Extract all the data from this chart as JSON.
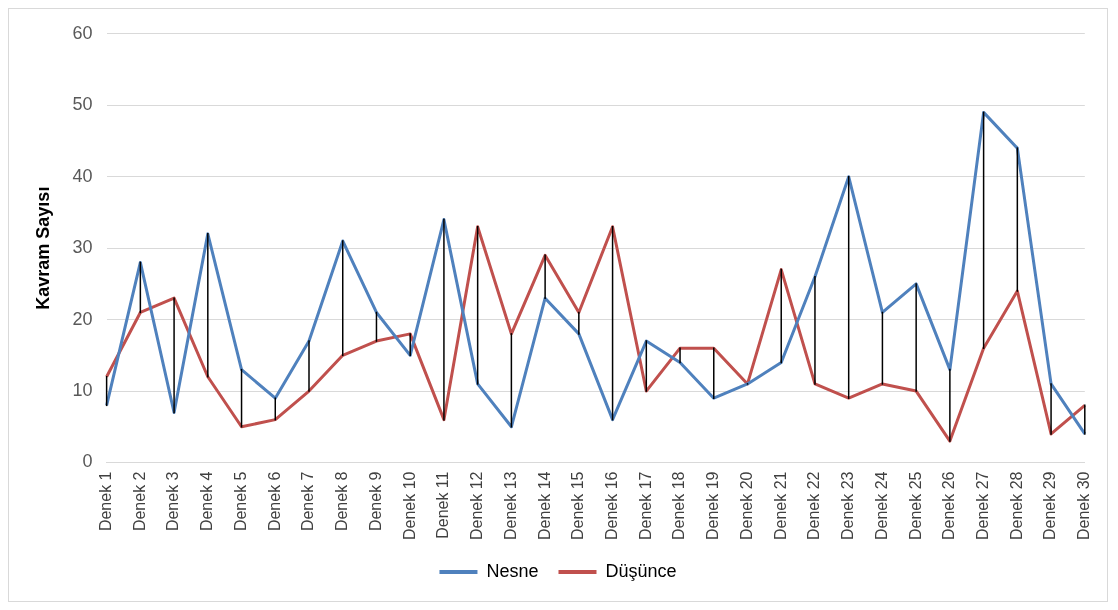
{
  "chart_data": {
    "type": "line",
    "ylabel": "Kavram Sayısı",
    "categories": [
      "Denek 1",
      "Denek 2",
      "Denek 3",
      "Denek 4",
      "Denek 5",
      "Denek 6",
      "Denek 7",
      "Denek 8",
      "Denek 9",
      "Denek 10",
      "Denek 11",
      "Denek 12",
      "Denek 13",
      "Denek 14",
      "Denek 15",
      "Denek 16",
      "Denek 17",
      "Denek 18",
      "Denek 19",
      "Denek 20",
      "Denek 21",
      "Denek 22",
      "Denek 23",
      "Denek 24",
      "Denek 25",
      "Denek 26",
      "Denek 27",
      "Denek 28",
      "Denek 29",
      "Denek 30"
    ],
    "series": [
      {
        "name": "Nesne",
        "color": "#4f81bd",
        "values": [
          8,
          28,
          7,
          32,
          13,
          9,
          17,
          31,
          21,
          15,
          34,
          11,
          5,
          23,
          18,
          6,
          17,
          14,
          9,
          11,
          14,
          26,
          40,
          21,
          25,
          13,
          49,
          44,
          11,
          4
        ],
        "errors": [
          [
            8,
            12
          ],
          [
            21,
            28
          ],
          [
            7,
            23
          ],
          [
            12,
            32
          ],
          [
            5,
            13
          ],
          [
            6,
            9
          ],
          [
            10,
            17
          ],
          [
            15,
            31
          ],
          [
            17,
            21
          ],
          [
            15,
            18
          ],
          [
            6,
            34
          ],
          [
            11,
            33
          ],
          [
            5,
            18
          ],
          [
            23,
            29
          ],
          [
            18,
            21
          ],
          [
            6,
            33
          ],
          [
            10,
            17
          ],
          [
            14,
            16
          ],
          [
            9,
            16
          ],
          [
            11,
            11
          ],
          [
            14,
            27
          ],
          [
            11,
            26
          ],
          [
            9,
            40
          ],
          [
            11,
            21
          ],
          [
            10,
            25
          ],
          [
            3,
            13
          ],
          [
            16,
            49
          ],
          [
            24,
            44
          ],
          [
            4,
            11
          ],
          [
            4,
            8
          ]
        ]
      },
      {
        "name": "Düşünce",
        "color": "#c0504d",
        "values": [
          12,
          21,
          23,
          12,
          5,
          6,
          10,
          15,
          17,
          18,
          6,
          33,
          18,
          29,
          21,
          33,
          10,
          16,
          16,
          11,
          27,
          11,
          9,
          11,
          10,
          3,
          16,
          24,
          4,
          8
        ]
      }
    ],
    "ylim": [
      0,
      60
    ],
    "yticks": [
      0,
      10,
      20,
      30,
      40,
      50,
      60
    ],
    "grid": "y",
    "legend": "bottom",
    "marker": "none",
    "line_style": "solid"
  }
}
